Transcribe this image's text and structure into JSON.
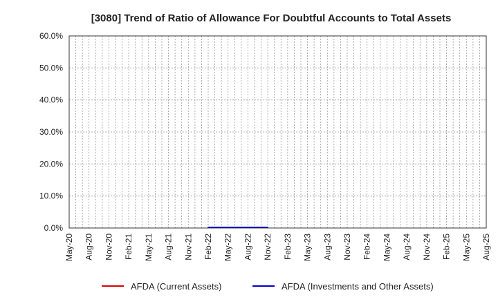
{
  "chart_data": {
    "type": "line",
    "title": "[3080]  Trend of Ratio of Allowance For Doubtful Accounts to Total Assets",
    "xlabel": "",
    "ylabel": "",
    "ylim": [
      0,
      60
    ],
    "yticks": [
      "0.0%",
      "10.0%",
      "20.0%",
      "30.0%",
      "40.0%",
      "50.0%",
      "60.0%"
    ],
    "x_range": [
      "2020-05",
      "2025-08"
    ],
    "xticks": [
      "May-20",
      "Aug-20",
      "Nov-20",
      "Feb-21",
      "May-21",
      "Aug-21",
      "Nov-21",
      "Feb-22",
      "May-22",
      "Aug-22",
      "Nov-22",
      "Feb-23",
      "May-23",
      "Aug-23",
      "Nov-23",
      "Feb-24",
      "May-24",
      "Aug-24",
      "Nov-24",
      "Feb-25",
      "May-25",
      "Aug-25"
    ],
    "grid": true,
    "legend_position": "bottom",
    "series": [
      {
        "name": "AFDA (Current Assets)",
        "color": "#dd0000",
        "points": []
      },
      {
        "name": "AFDA (Investments and Other Assets)",
        "color": "#0000cc",
        "points": [
          {
            "x": "2022-02",
            "y": 0.2
          },
          {
            "x": "2022-05",
            "y": 0.2
          },
          {
            "x": "2022-08",
            "y": 0.2
          },
          {
            "x": "2022-11",
            "y": 0.2
          }
        ]
      }
    ]
  }
}
